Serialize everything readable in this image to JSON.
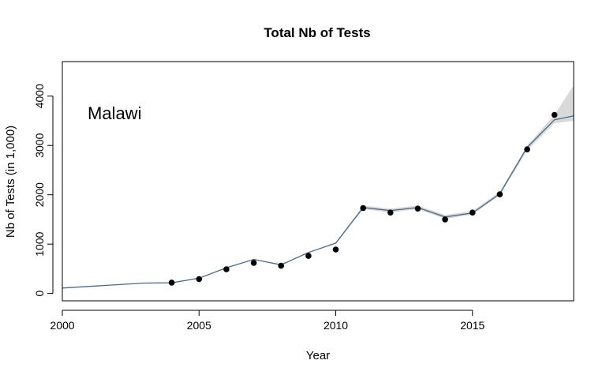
{
  "chart_data": {
    "type": "line",
    "title": "Total Nb of Tests",
    "xlabel": "Year",
    "ylabel": "Nb of Tests (in 1,000)",
    "annotation": "Malawi",
    "xlim": [
      2000,
      2018.7
    ],
    "ylim": [
      -150,
      4700
    ],
    "x_ticks": [
      2000,
      2005,
      2010,
      2015
    ],
    "y_ticks": [
      0,
      1000,
      2000,
      3000,
      4000
    ],
    "grid": false,
    "colors": {
      "line": "#4a6a8c",
      "band": "#d9d9d9",
      "points": "#000000"
    },
    "series": [
      {
        "type": "line",
        "x": [
          2000,
          2003,
          2004,
          2005,
          2006,
          2007,
          2008,
          2009,
          2010,
          2011,
          2012,
          2013,
          2014,
          2015,
          2016,
          2017,
          2018,
          2018.7
        ],
        "values": [
          110,
          210,
          215,
          310,
          520,
          690,
          580,
          830,
          1020,
          1740,
          1680,
          1740,
          1550,
          1630,
          2020,
          2960,
          3520,
          3600
        ]
      },
      {
        "type": "band",
        "x": [
          2010,
          2011,
          2012,
          2013,
          2014,
          2015,
          2016,
          2017,
          2018,
          2018.7
        ],
        "lower": [
          1000,
          1710,
          1640,
          1710,
          1510,
          1600,
          1990,
          2900,
          3450,
          3500
        ],
        "upper": [
          1040,
          1780,
          1720,
          1780,
          1590,
          1670,
          2060,
          3000,
          3620,
          4220
        ]
      },
      {
        "type": "scatter",
        "x": [
          2004,
          2005,
          2006,
          2007,
          2008,
          2009,
          2010,
          2011,
          2012,
          2013,
          2014,
          2015,
          2016,
          2017,
          2018
        ],
        "values": [
          220,
          290,
          490,
          620,
          560,
          760,
          890,
          1730,
          1640,
          1720,
          1500,
          1640,
          2010,
          2920,
          3620
        ]
      }
    ]
  }
}
